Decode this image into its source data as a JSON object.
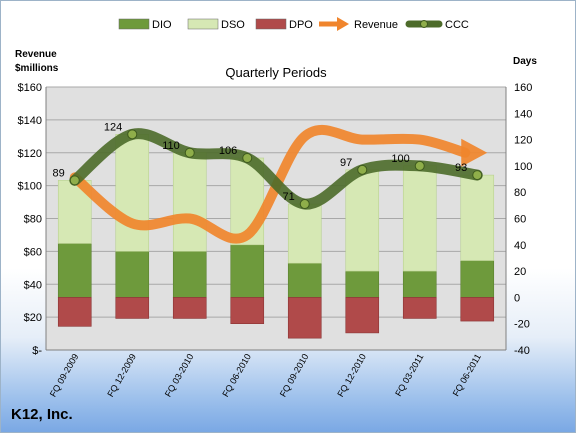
{
  "chart_data": {
    "type": "bar",
    "title": "K12, Inc.",
    "subtitle": "Quarterly Periods",
    "categories": [
      "FQ 09-2009",
      "FQ 12-2009",
      "FQ 03-2010",
      "FQ 06-2010",
      "FQ 09-2010",
      "FQ 12-2010",
      "FQ 03-2011",
      "FQ 06-2011"
    ],
    "left_axis": {
      "label_line1": "Revenue",
      "label_line2": "$millions",
      "ylim": [
        0,
        160
      ],
      "ticks": [
        0,
        20,
        40,
        60,
        80,
        100,
        120,
        140,
        160
      ],
      "tick_labels": [
        "$-",
        "$20",
        "$40",
        "$60",
        "$80",
        "$100",
        "$120",
        "$140",
        "$160"
      ]
    },
    "right_axis": {
      "label": "Days",
      "ylim": [
        -40,
        160
      ],
      "ticks": [
        -40,
        -20,
        0,
        20,
        40,
        60,
        80,
        100,
        120,
        140,
        160
      ],
      "tick_labels": [
        "-40",
        "-20",
        "0",
        "20",
        "40",
        "60",
        "80",
        "100",
        "120",
        "140",
        "160"
      ]
    },
    "series": [
      {
        "name": "DIO",
        "axis": "right",
        "color": "#6e9a3c",
        "values": [
          41,
          35,
          35,
          40,
          26,
          20,
          20,
          28
        ]
      },
      {
        "name": "DSO",
        "axis": "right",
        "color": "#d6e8b4",
        "values": [
          48,
          89,
          75,
          66,
          45,
          77,
          80,
          65
        ]
      },
      {
        "name": "DPO",
        "axis": "right",
        "color": "#b04a4a",
        "values": [
          -22,
          -16,
          -16,
          -20,
          -31,
          -27,
          -16,
          -18
        ]
      },
      {
        "name": "Revenue",
        "axis": "left",
        "color": "#f0852d",
        "values": [
          105,
          77,
          80,
          70,
          130,
          128,
          128,
          120
        ],
        "arrow": true
      },
      {
        "name": "CCC",
        "axis": "right",
        "color": "#4d6b2a",
        "values": [
          89,
          124,
          110,
          106,
          71,
          97,
          100,
          93
        ],
        "data_labels": [
          "89",
          "124",
          "110",
          "106",
          "71",
          "97",
          "100",
          "93"
        ]
      }
    ],
    "grid": true,
    "legend_position": "top"
  }
}
